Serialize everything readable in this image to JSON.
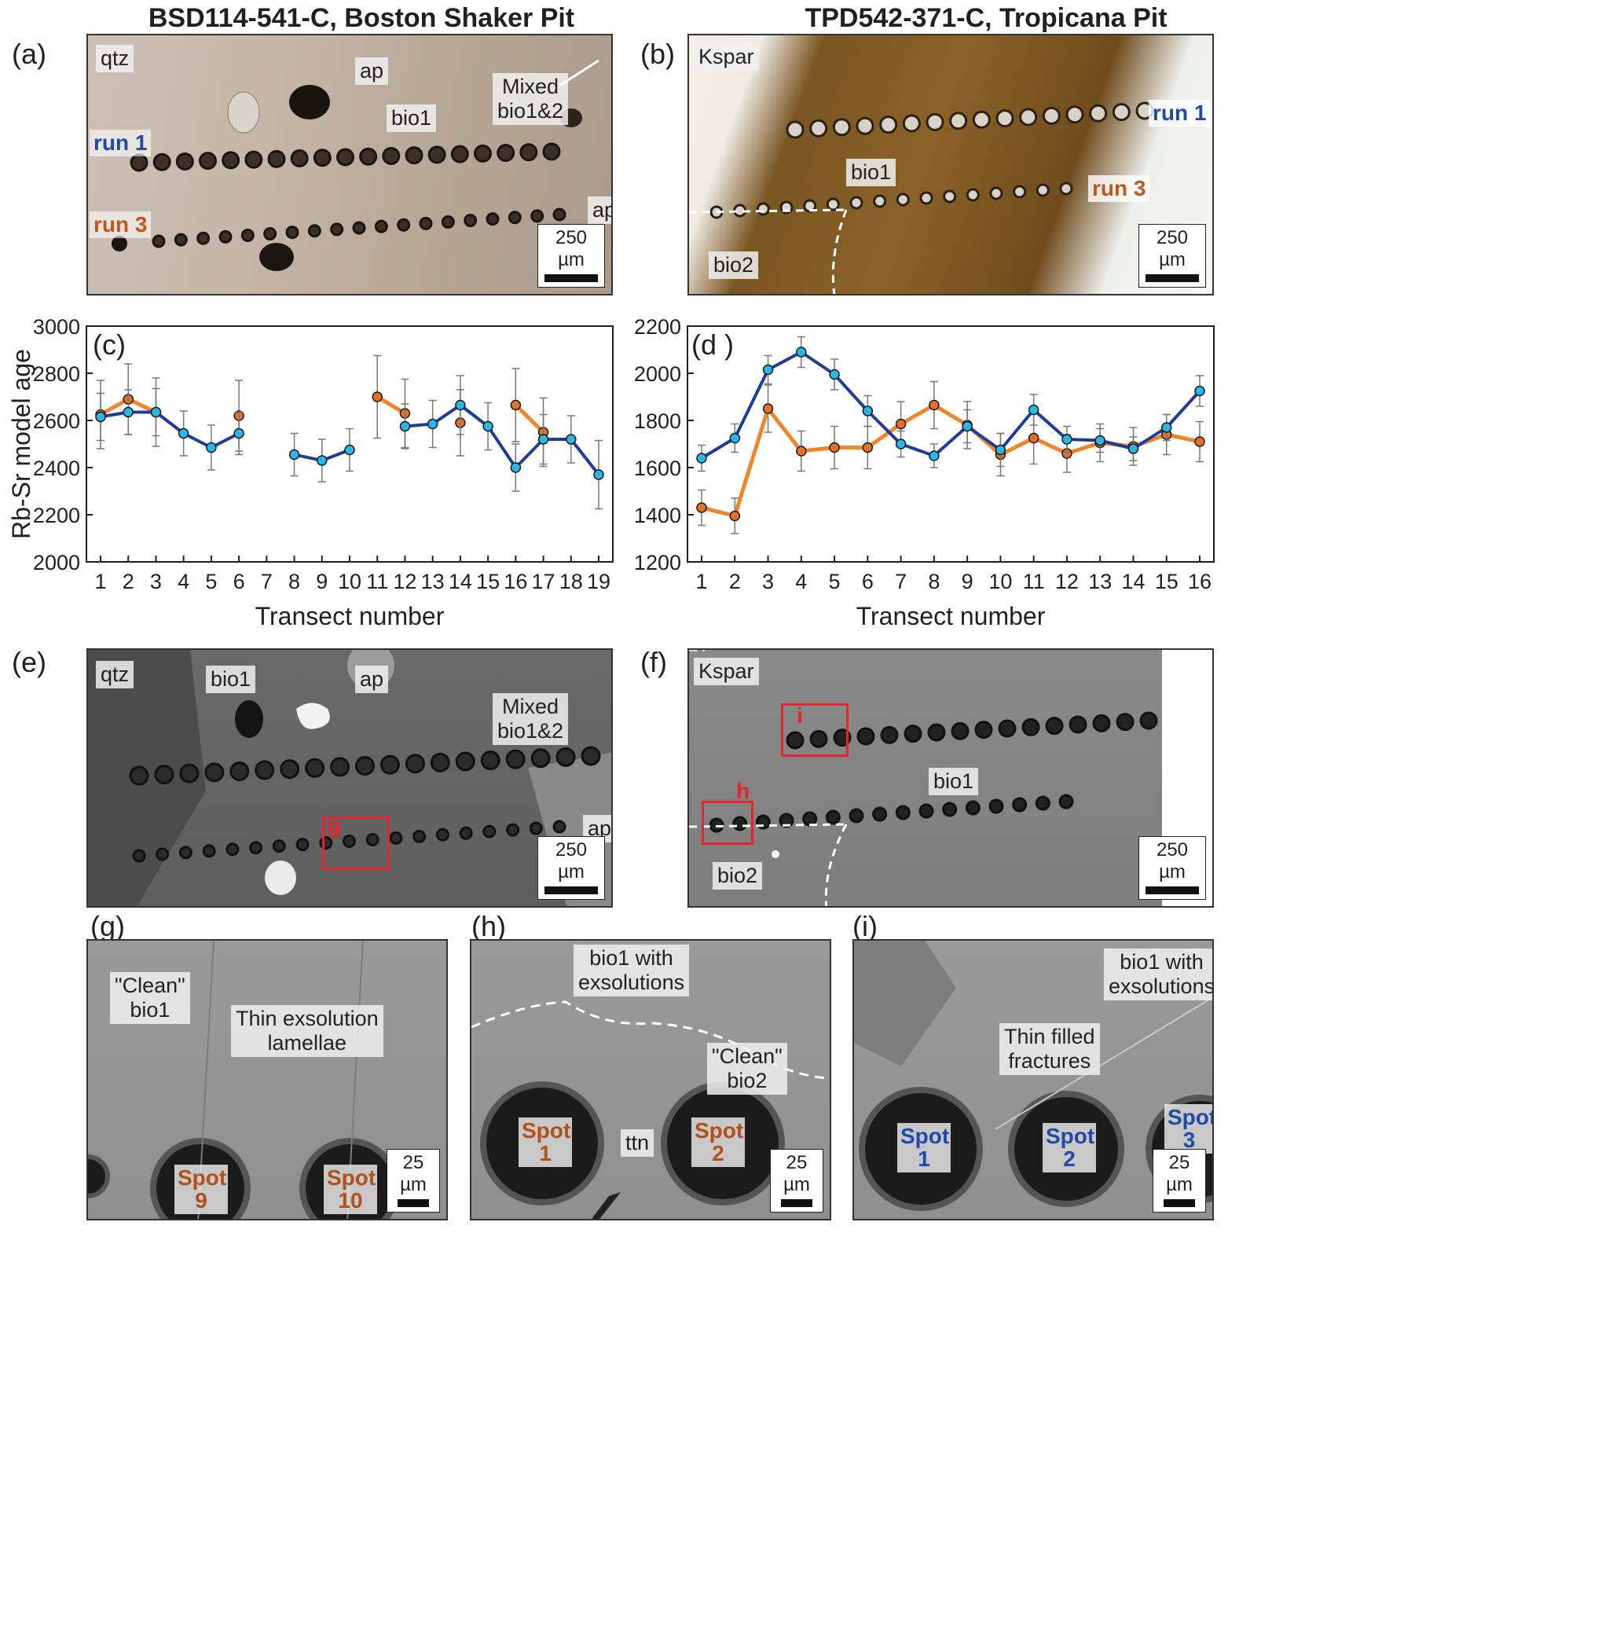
{
  "titles": {
    "left": "BSD114-541-C, Boston Shaker Pit",
    "right": "TPD542-371-C, Tropicana Pit"
  },
  "panel_labels": {
    "a": "(a)",
    "b": "(b)",
    "c": "(c)",
    "d": "(d )",
    "e": "(e)",
    "f": "(f)",
    "g": "(g)",
    "h": "(h)",
    "i": "(i)"
  },
  "panel_a": {
    "labels": {
      "qtz": "qtz",
      "ap1": "ap",
      "ap2": "ap",
      "bio1": "bio1",
      "mixed": "Mixed\nbio1&2"
    },
    "runs": {
      "run1": "run 1",
      "run3": "run 3"
    },
    "scale": "250 µm"
  },
  "panel_b": {
    "labels": {
      "kspar": "Kspar",
      "bio1": "bio1",
      "bio2": "bio2"
    },
    "runs": {
      "run1": "run 1",
      "run3": "run 3"
    },
    "scale": "250 µm"
  },
  "panel_e": {
    "labels": {
      "qtz": "qtz",
      "bio1": "bio1",
      "ap1": "ap",
      "ap2": "ap",
      "mixed": "Mixed\nbio1&2"
    },
    "box_letter": "g",
    "scale": "250 µm"
  },
  "panel_f": {
    "labels": {
      "kspar": "Kspar",
      "bio1": "bio1",
      "bio2": "bio2"
    },
    "box_letters": {
      "i": "i",
      "h": "h"
    },
    "scale": "250 µm"
  },
  "panel_g": {
    "labels": {
      "clean": "\"Clean\"\nbio1",
      "lamellae": "Thin exsolution\nlamellae"
    },
    "spots": [
      "Spot\n9",
      "Spot\n10"
    ],
    "scale": "25 µm"
  },
  "panel_h": {
    "labels": {
      "exsol": "bio1 with\nexsolutions",
      "clean": "\"Clean\"\nbio2",
      "ttn": "ttn"
    },
    "spots": [
      "Spot\n1",
      "Spot\n2"
    ],
    "scale": "25 µm"
  },
  "panel_i": {
    "labels": {
      "exsol": "bio1 with\nexsolutions",
      "fractures": "Thin filled\nfractures"
    },
    "spots": [
      "Spot\n1",
      "Spot\n2",
      "Spot\n3"
    ],
    "scale": "25 µm"
  },
  "colors": {
    "run1": "#1f3c96",
    "run1_marker": "#29b6e8",
    "run3": "#f0862c",
    "run3_marker": "#e76f27",
    "run1_text": "#1f4aa8",
    "run3_text": "#c0561e",
    "red": "#e8232a"
  },
  "chart_data": [
    {
      "type": "line",
      "ylabel": "Rb-Sr model age",
      "xlabel": "Transect number",
      "ylim": [
        2000,
        3000
      ],
      "yticks": [
        2000,
        2200,
        2400,
        2600,
        2800,
        3000
      ],
      "xticks": [
        1,
        2,
        3,
        4,
        5,
        6,
        7,
        8,
        9,
        10,
        11,
        12,
        13,
        14,
        15,
        16,
        17,
        18,
        19
      ],
      "series": [
        {
          "key": "run1",
          "segments": [
            [
              [
                1,
                2615,
                100
              ],
              [
                2,
                2635,
                95
              ],
              [
                3,
                2635,
                100
              ],
              [
                4,
                2545,
                95
              ],
              [
                5,
                2485,
                95
              ],
              [
                6,
                2545,
                90
              ]
            ],
            [
              [
                8,
                2455,
                90
              ],
              [
                9,
                2430,
                90
              ],
              [
                10,
                2475,
                90
              ]
            ],
            [
              [
                12,
                2575,
                95
              ],
              [
                13,
                2585,
                100
              ],
              [
                14,
                2665,
                125
              ],
              [
                15,
                2575,
                100
              ],
              [
                16,
                2400,
                100
              ],
              [
                17,
                2520,
                105
              ],
              [
                18,
                2520,
                100
              ],
              [
                19,
                2370,
                145
              ]
            ]
          ]
        },
        {
          "key": "run3",
          "segments": [
            [
              [
                1,
                2625,
                145
              ],
              [
                2,
                2690,
                150
              ],
              [
                3,
                2635,
                145
              ]
            ],
            [
              [
                6,
                2620,
                150
              ]
            ],
            [
              [
                11,
                2700,
                175
              ],
              [
                12,
                2630,
                145
              ]
            ],
            [
              [
                14,
                2590,
                140
              ]
            ],
            [
              [
                16,
                2665,
                155
              ],
              [
                17,
                2550,
                145
              ]
            ]
          ]
        }
      ]
    },
    {
      "type": "line",
      "ylabel": "",
      "xlabel": "Transect number",
      "ylim": [
        1200,
        2200
      ],
      "yticks": [
        1200,
        1400,
        1600,
        1800,
        2000,
        2200
      ],
      "xticks": [
        1,
        2,
        3,
        4,
        5,
        6,
        7,
        8,
        9,
        10,
        11,
        12,
        13,
        14,
        15,
        16
      ],
      "series": [
        {
          "key": "run1",
          "segments": [
            [
              [
                1,
                1640,
                55
              ],
              [
                2,
                1725,
                60
              ],
              [
                3,
                2015,
                60
              ],
              [
                4,
                2090,
                65
              ],
              [
                5,
                1995,
                65
              ],
              [
                6,
                1840,
                65
              ],
              [
                7,
                1700,
                55
              ],
              [
                8,
                1650,
                50
              ],
              [
                9,
                1775,
                70
              ],
              [
                10,
                1675,
                70
              ],
              [
                11,
                1845,
                65
              ],
              [
                12,
                1720,
                55
              ],
              [
                13,
                1715,
                50
              ],
              [
                14,
                1680,
                50
              ],
              [
                15,
                1770,
                55
              ],
              [
                16,
                1925,
                65
              ]
            ]
          ]
        },
        {
          "key": "run3",
          "segments": [
            [
              [
                1,
                1430,
                75
              ],
              [
                2,
                1395,
                75
              ],
              [
                3,
                1850,
                100
              ],
              [
                4,
                1670,
                85
              ],
              [
                5,
                1685,
                90
              ],
              [
                6,
                1685,
                90
              ],
              [
                7,
                1785,
                95
              ],
              [
                8,
                1865,
                100
              ],
              [
                9,
                1780,
                100
              ],
              [
                10,
                1655,
                90
              ],
              [
                11,
                1725,
                110
              ],
              [
                12,
                1660,
                80
              ],
              [
                13,
                1705,
                80
              ],
              [
                14,
                1690,
                80
              ],
              [
                15,
                1740,
                85
              ],
              [
                16,
                1710,
                85
              ]
            ]
          ]
        }
      ]
    }
  ]
}
